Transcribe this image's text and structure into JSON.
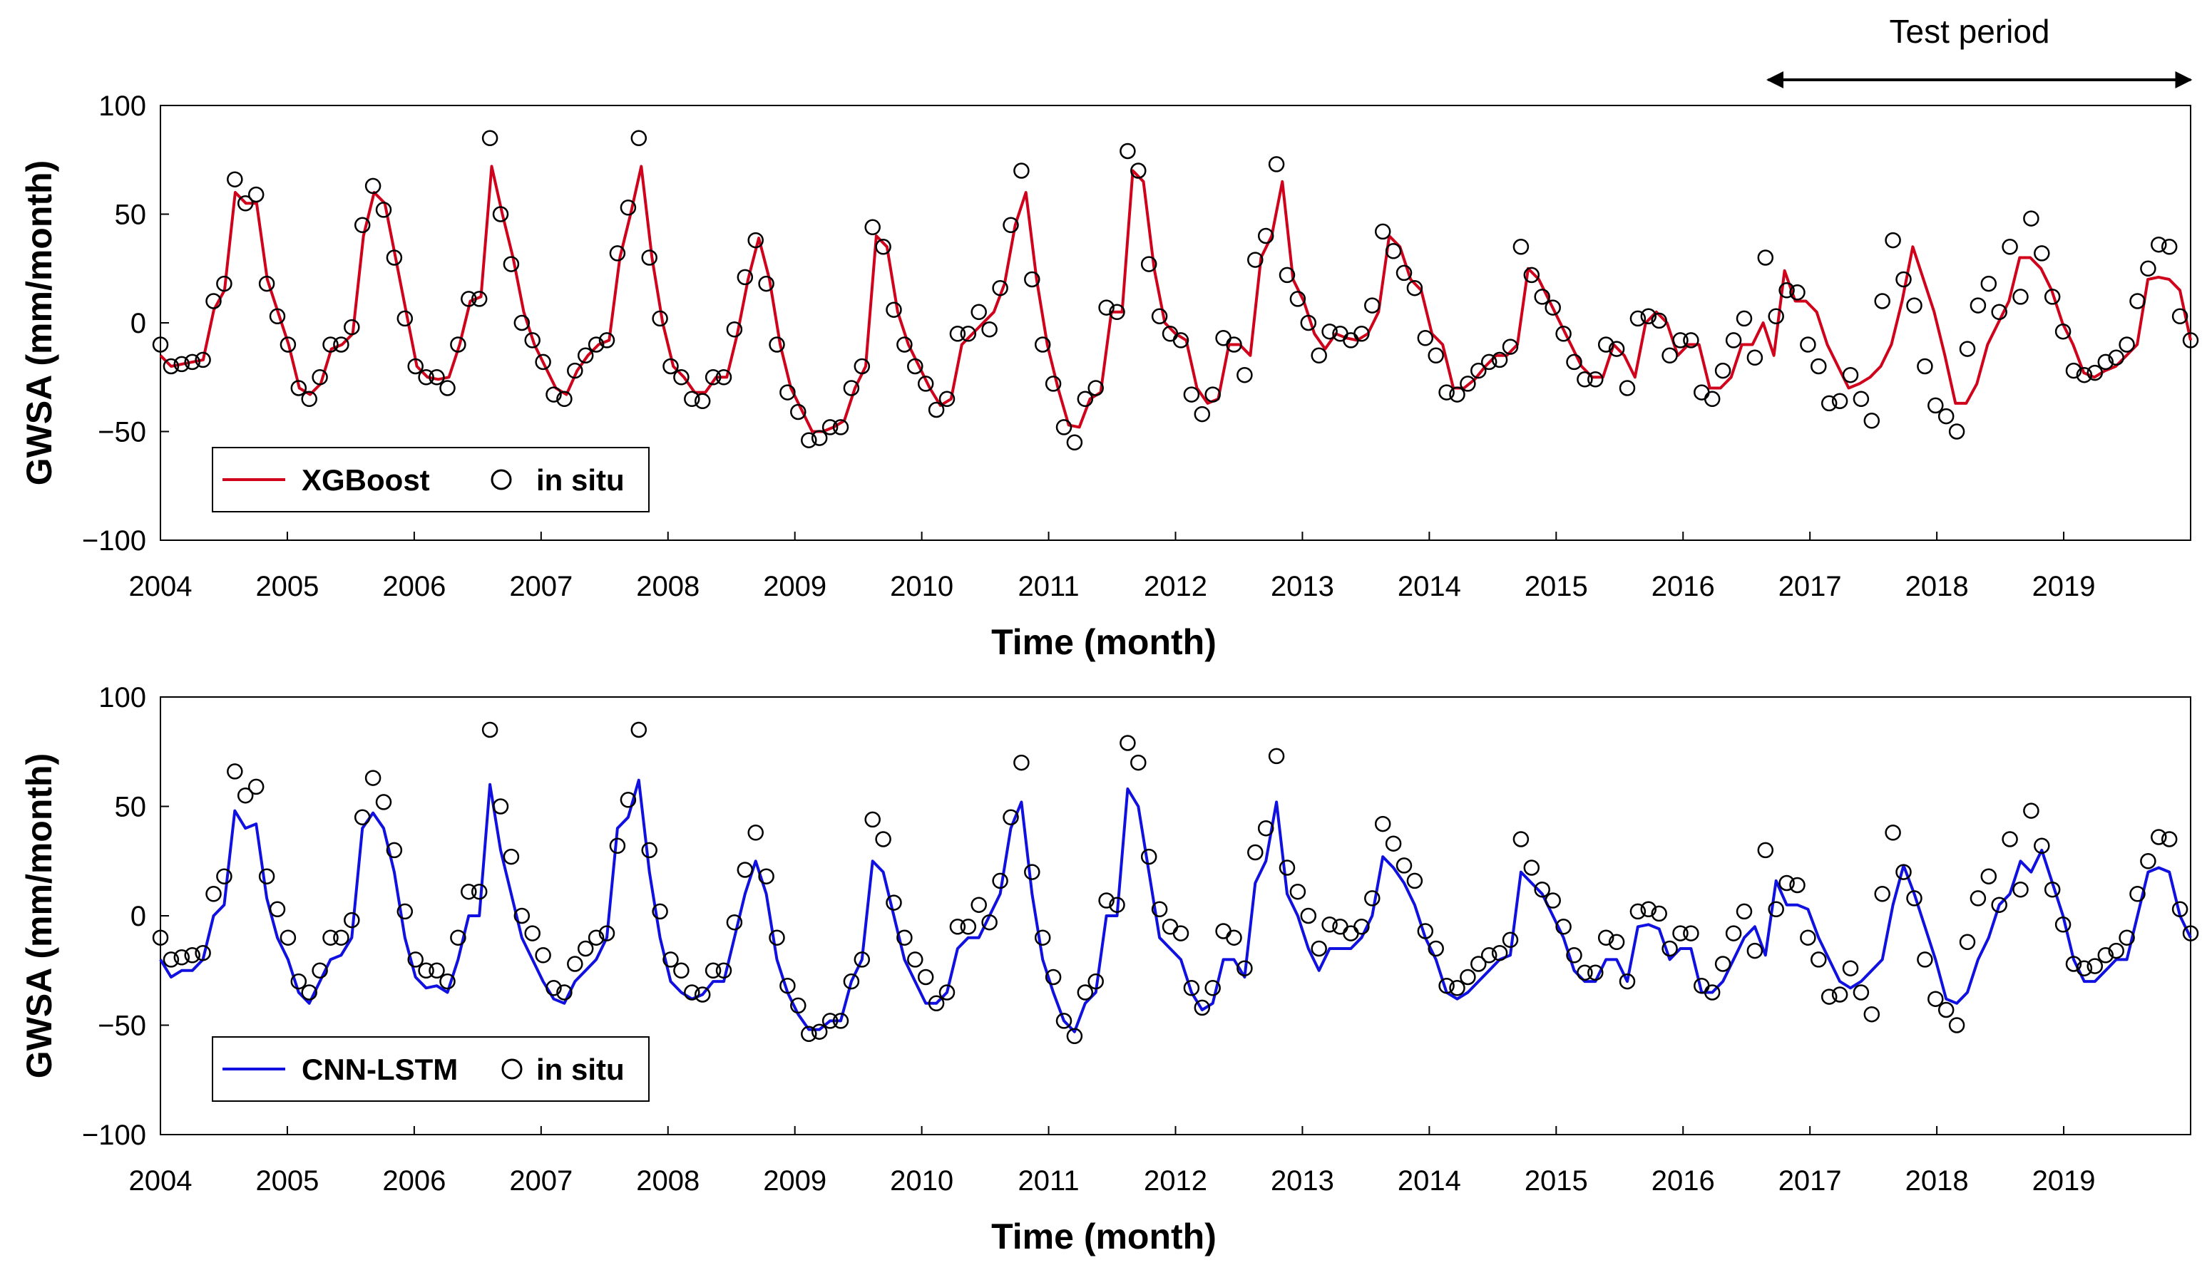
{
  "annotation": {
    "label": "Test period",
    "x_start": 2016.67,
    "x_end": 2020.0
  },
  "chart_data": [
    {
      "type": "line",
      "xlabel": "Time (month)",
      "ylabel": "GWSA (mm/month)",
      "xlim": [
        2004,
        2020
      ],
      "ylim": [
        -100,
        100
      ],
      "xticks": [
        2004,
        2005,
        2006,
        2007,
        2008,
        2009,
        2010,
        2011,
        2012,
        2013,
        2014,
        2015,
        2016,
        2017,
        2018,
        2019
      ],
      "yticks": [
        100,
        50,
        0,
        -50,
        -100
      ],
      "ytick_labels": [
        "100",
        "50",
        "0",
        "−50",
        "−100"
      ],
      "legend": {
        "position": "bottom-left",
        "model_label": "XGBoost",
        "obs_label": "in situ"
      },
      "series": [
        {
          "name": "XGBoost",
          "color": "#d0021b",
          "kind": "line",
          "values": [
            -15,
            -20,
            -19,
            -18,
            -17,
            6,
            15,
            60,
            55,
            55,
            20,
            5,
            -10,
            -30,
            -33,
            -28,
            -12,
            -10,
            -5,
            40,
            60,
            55,
            30,
            5,
            -20,
            -25,
            -26,
            -25,
            -10,
            10,
            12,
            72,
            50,
            30,
            5,
            -10,
            -20,
            -30,
            -33,
            -22,
            -15,
            -10,
            -8,
            30,
            50,
            72,
            30,
            0,
            -20,
            -25,
            -32,
            -32,
            -25,
            -25,
            -5,
            20,
            39,
            20,
            -10,
            -30,
            -40,
            -50,
            -50,
            -48,
            -45,
            -30,
            -20,
            40,
            35,
            5,
            -10,
            -20,
            -30,
            -38,
            -35,
            -10,
            -5,
            0,
            5,
            18,
            45,
            60,
            20,
            -10,
            -30,
            -47,
            -48,
            -35,
            -32,
            5,
            5,
            70,
            65,
            25,
            0,
            -5,
            -8,
            -30,
            -37,
            -35,
            -10,
            -10,
            -15,
            30,
            40,
            65,
            20,
            10,
            -5,
            -12,
            -5,
            -7,
            -8,
            -5,
            5,
            40,
            35,
            20,
            15,
            -5,
            -10,
            -30,
            -30,
            -26,
            -20,
            -15,
            -15,
            -10,
            25,
            20,
            10,
            0,
            -10,
            -20,
            -25,
            -25,
            -10,
            -15,
            -25,
            0,
            5,
            0,
            -15,
            -10,
            -10,
            -30,
            -30,
            -25,
            -10,
            -10,
            0,
            -15,
            24,
            10,
            10,
            5,
            -10,
            -20,
            -30,
            -28,
            -25,
            -20,
            -10,
            10,
            35,
            20,
            5,
            -15,
            -37,
            -37,
            -28,
            -10,
            0,
            10,
            30,
            30,
            25,
            15,
            0,
            -10,
            -23,
            -25,
            -22,
            -20,
            -15,
            -10,
            20,
            21,
            20,
            15,
            -8
          ]
        },
        {
          "name": "in situ",
          "kind": "markers",
          "values": [
            -10,
            -20,
            -19,
            -18,
            -17,
            10,
            18,
            66,
            55,
            59,
            18,
            3,
            -10,
            -30,
            -35,
            -25,
            -10,
            -10,
            -2,
            45,
            63,
            52,
            30,
            2,
            -20,
            -25,
            -25,
            -30,
            -10,
            11,
            11,
            85,
            50,
            27,
            0,
            -8,
            -18,
            -33,
            -35,
            -22,
            -15,
            -10,
            -8,
            32,
            53,
            85,
            30,
            2,
            -20,
            -25,
            -35,
            -36,
            -25,
            -25,
            -3,
            21,
            38,
            18,
            -10,
            -32,
            -41,
            -54,
            -53,
            -48,
            -48,
            -30,
            -20,
            44,
            35,
            6,
            -10,
            -20,
            -28,
            -40,
            -35,
            -5,
            -5,
            5,
            -3,
            16,
            45,
            70,
            20,
            -10,
            -28,
            -48,
            -55,
            -35,
            -30,
            7,
            5,
            79,
            70,
            27,
            3,
            -5,
            -8,
            -33,
            -42,
            -33,
            -7,
            -10,
            -24,
            29,
            40,
            73,
            22,
            11,
            0,
            -15,
            -4,
            -5,
            -8,
            -5,
            8,
            42,
            33,
            23,
            16,
            -7,
            -15,
            -32,
            -33,
            -28,
            -22,
            -18,
            -17,
            -11,
            35,
            22,
            12,
            7,
            -5,
            -18,
            -26,
            -26,
            -10,
            -12,
            -30,
            2,
            3,
            1,
            -15,
            -8,
            -8,
            -32,
            -35,
            -22,
            -8,
            2,
            -16,
            30,
            3,
            15,
            14,
            -10,
            -20,
            -37,
            -36,
            -24,
            -35,
            -45,
            10,
            38,
            20,
            8,
            -20,
            -38,
            -43,
            -50,
            -12,
            8,
            18,
            5,
            35,
            12,
            48,
            32,
            12,
            -4,
            -22,
            -24,
            -23,
            -18,
            -16,
            -10,
            10,
            25,
            36,
            35,
            3,
            -8
          ]
        }
      ]
    },
    {
      "type": "line",
      "xlabel": "Time (month)",
      "ylabel": "GWSA (mm/month)",
      "xlim": [
        2004,
        2020
      ],
      "ylim": [
        -100,
        100
      ],
      "xticks": [
        2004,
        2005,
        2006,
        2007,
        2008,
        2009,
        2010,
        2011,
        2012,
        2013,
        2014,
        2015,
        2016,
        2017,
        2018,
        2019
      ],
      "yticks": [
        100,
        50,
        0,
        -50,
        -100
      ],
      "ytick_labels": [
        "100",
        "50",
        "0",
        "−50",
        "−100"
      ],
      "legend": {
        "position": "bottom-left",
        "model_label": "CNN-LSTM",
        "obs_label": "in situ"
      },
      "series": [
        {
          "name": "CNN-LSTM",
          "color": "#1010e0",
          "kind": "line",
          "values": [
            -20,
            -28,
            -25,
            -25,
            -20,
            0,
            5,
            48,
            40,
            42,
            8,
            -10,
            -20,
            -35,
            -40,
            -30,
            -20,
            -18,
            -10,
            40,
            47,
            40,
            20,
            -10,
            -28,
            -33,
            -32,
            -35,
            -20,
            0,
            0,
            60,
            30,
            10,
            -10,
            -20,
            -30,
            -38,
            -40,
            -30,
            -25,
            -20,
            -10,
            40,
            45,
            62,
            20,
            -10,
            -30,
            -35,
            -38,
            -36,
            -30,
            -30,
            -10,
            10,
            25,
            10,
            -20,
            -35,
            -45,
            -52,
            -52,
            -48,
            -48,
            -30,
            -20,
            25,
            20,
            0,
            -20,
            -30,
            -40,
            -40,
            -35,
            -15,
            -10,
            -10,
            0,
            10,
            40,
            52,
            10,
            -20,
            -35,
            -48,
            -53,
            -40,
            -35,
            0,
            0,
            58,
            50,
            20,
            -10,
            -15,
            -20,
            -35,
            -43,
            -40,
            -20,
            -20,
            -28,
            15,
            25,
            52,
            10,
            0,
            -15,
            -25,
            -15,
            -15,
            -15,
            -10,
            0,
            27,
            22,
            15,
            5,
            -10,
            -20,
            -35,
            -38,
            -35,
            -30,
            -25,
            -20,
            -18,
            20,
            15,
            10,
            0,
            -10,
            -25,
            -30,
            -30,
            -20,
            -20,
            -30,
            -5,
            -4,
            -6,
            -20,
            -15,
            -15,
            -35,
            -35,
            -30,
            -20,
            -10,
            -5,
            -18,
            16,
            5,
            5,
            3,
            -10,
            -20,
            -30,
            -33,
            -30,
            -25,
            -20,
            5,
            23,
            10,
            -5,
            -20,
            -38,
            -40,
            -35,
            -20,
            -10,
            5,
            10,
            25,
            20,
            30,
            15,
            0,
            -20,
            -30,
            -30,
            -25,
            -20,
            -20,
            0,
            20,
            22,
            20,
            0,
            -10
          ]
        },
        {
          "name": "in situ",
          "kind": "markers",
          "values": [
            -10,
            -20,
            -19,
            -18,
            -17,
            10,
            18,
            66,
            55,
            59,
            18,
            3,
            -10,
            -30,
            -35,
            -25,
            -10,
            -10,
            -2,
            45,
            63,
            52,
            30,
            2,
            -20,
            -25,
            -25,
            -30,
            -10,
            11,
            11,
            85,
            50,
            27,
            0,
            -8,
            -18,
            -33,
            -35,
            -22,
            -15,
            -10,
            -8,
            32,
            53,
            85,
            30,
            2,
            -20,
            -25,
            -35,
            -36,
            -25,
            -25,
            -3,
            21,
            38,
            18,
            -10,
            -32,
            -41,
            -54,
            -53,
            -48,
            -48,
            -30,
            -20,
            44,
            35,
            6,
            -10,
            -20,
            -28,
            -40,
            -35,
            -5,
            -5,
            5,
            -3,
            16,
            45,
            70,
            20,
            -10,
            -28,
            -48,
            -55,
            -35,
            -30,
            7,
            5,
            79,
            70,
            27,
            3,
            -5,
            -8,
            -33,
            -42,
            -33,
            -7,
            -10,
            -24,
            29,
            40,
            73,
            22,
            11,
            0,
            -15,
            -4,
            -5,
            -8,
            -5,
            8,
            42,
            33,
            23,
            16,
            -7,
            -15,
            -32,
            -33,
            -28,
            -22,
            -18,
            -17,
            -11,
            35,
            22,
            12,
            7,
            -5,
            -18,
            -26,
            -26,
            -10,
            -12,
            -30,
            2,
            3,
            1,
            -15,
            -8,
            -8,
            -32,
            -35,
            -22,
            -8,
            2,
            -16,
            30,
            3,
            15,
            14,
            -10,
            -20,
            -37,
            -36,
            -24,
            -35,
            -45,
            10,
            38,
            20,
            8,
            -20,
            -38,
            -43,
            -50,
            -12,
            8,
            18,
            5,
            35,
            12,
            48,
            32,
            12,
            -4,
            -22,
            -24,
            -23,
            -18,
            -16,
            -10,
            10,
            25,
            36,
            35,
            3,
            -8
          ]
        }
      ]
    }
  ]
}
